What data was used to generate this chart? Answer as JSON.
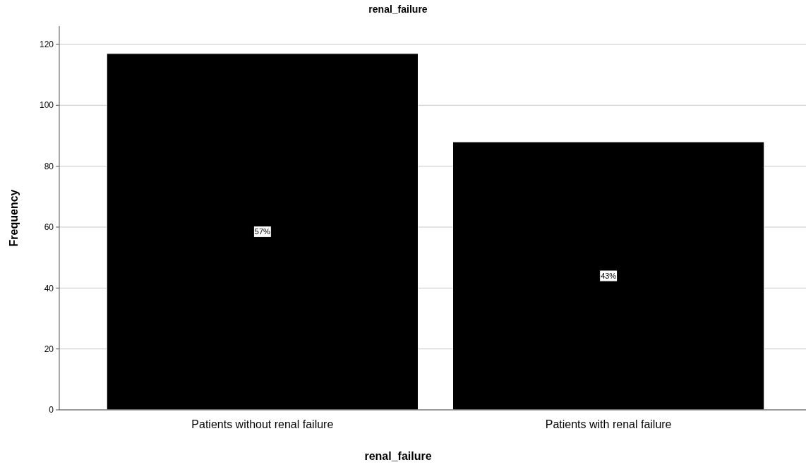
{
  "chart_data": {
    "type": "bar",
    "title": "renal_failure",
    "xlabel": "renal_failure",
    "ylabel": "Frequency",
    "categories": [
      "Patients without renal failure",
      "Patients with renal failure"
    ],
    "values": [
      117,
      88
    ],
    "color": "#000000",
    "annotations": [
      {
        "text": "57%",
        "x": "Patients without renal failure",
        "y": 58.5
      },
      {
        "text": "43%",
        "x": "Patients with renal failure",
        "y": 44
      }
    ],
    "ylim": [
      0,
      126
    ],
    "yticks": [
      0,
      20,
      40,
      60,
      80,
      100,
      120
    ],
    "grid": "y"
  }
}
